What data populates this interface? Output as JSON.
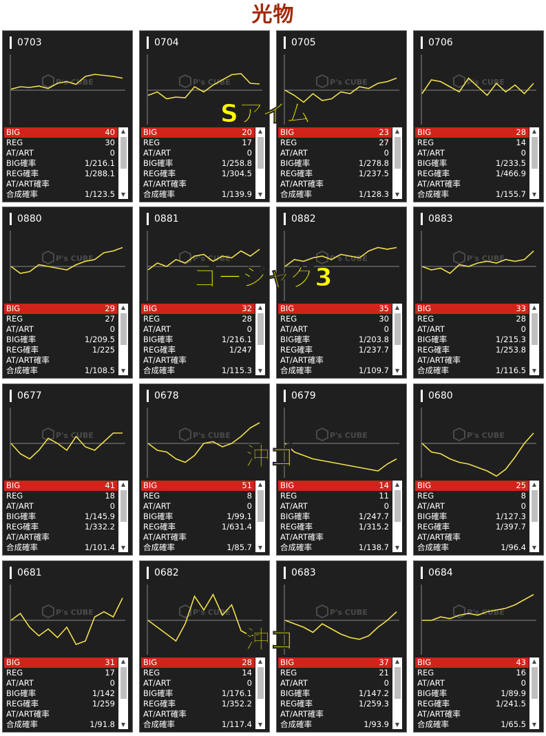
{
  "page": {
    "title": "光物"
  },
  "overlays": [
    {
      "text": "Sアイム"
    },
    {
      "text": "ゴージャグ3"
    },
    {
      "text": "沖ゴ"
    },
    {
      "text": "沖ゴ"
    }
  ],
  "labels": {
    "big": "BIG",
    "reg": "REG",
    "at": "AT/ART",
    "big_rate": "BIG確率",
    "reg_rate": "REG確率",
    "at_rate": "AT/ART確率",
    "combined_rate": "合成確率"
  },
  "colors": {
    "line": "#f2e14c",
    "big_bar": "#d0241b",
    "card_bg": "#1f1f1f",
    "title": "#a0290a",
    "overlay": "#ffff00"
  },
  "watermark": {
    "brand": "P's CUBE",
    "icon": "cube-logo-icon"
  },
  "machines": [
    {
      "id": "0703",
      "big": "40",
      "reg": "30",
      "at": "0",
      "big_rate": "1/216.1",
      "reg_rate": "1/288.1",
      "at_rate": "",
      "combined": "1/123.5",
      "graph": [
        0.03,
        0.1,
        0.08,
        0.12,
        0.05,
        0.2,
        0.25,
        0.17,
        0.4,
        0.46,
        0.43,
        0.4,
        0.35
      ]
    },
    {
      "id": "0704",
      "big": "20",
      "reg": "17",
      "at": "0",
      "big_rate": "1/258.8",
      "reg_rate": "1/304.5",
      "at_rate": "",
      "combined": "1/139.9",
      "graph": [
        -0.15,
        -0.05,
        -0.25,
        -0.2,
        -0.22,
        0.1,
        -0.05,
        0.15,
        0.3,
        0.45,
        0.48,
        0.2,
        0.18
      ]
    },
    {
      "id": "0705",
      "big": "23",
      "reg": "27",
      "at": "0",
      "big_rate": "1/278.8",
      "reg_rate": "1/237.5",
      "at_rate": "",
      "combined": "1/128.3",
      "graph": [
        0.0,
        -0.15,
        -0.35,
        -0.1,
        -0.3,
        -0.25,
        -0.05,
        -0.1,
        0.1,
        0.05,
        0.2,
        0.25,
        0.35
      ]
    },
    {
      "id": "0706",
      "big": "28",
      "reg": "14",
      "at": "0",
      "big_rate": "1/233.5",
      "reg_rate": "1/466.9",
      "at_rate": "",
      "combined": "1/155.7",
      "graph": [
        -0.1,
        0.3,
        0.25,
        0.1,
        -0.05,
        0.35,
        0.1,
        -0.15,
        0.2,
        -0.05,
        0.15,
        -0.1,
        0.2
      ]
    },
    {
      "id": "0880",
      "big": "29",
      "reg": "27",
      "at": "0",
      "big_rate": "1/209.5",
      "reg_rate": "1/225",
      "at_rate": "",
      "combined": "1/108.5",
      "graph": [
        0.0,
        -0.2,
        -0.15,
        0.05,
        0.0,
        -0.05,
        -0.1,
        0.05,
        0.15,
        0.2,
        0.4,
        0.45,
        0.55
      ]
    },
    {
      "id": "0881",
      "big": "32",
      "reg": "28",
      "at": "0",
      "big_rate": "1/216.1",
      "reg_rate": "1/247",
      "at_rate": "",
      "combined": "1/115.3",
      "graph": [
        -0.1,
        0.1,
        0.0,
        0.2,
        0.1,
        0.3,
        0.35,
        0.15,
        0.3,
        0.25,
        0.45,
        0.3,
        0.5
      ]
    },
    {
      "id": "0882",
      "big": "35",
      "reg": "30",
      "at": "0",
      "big_rate": "1/203.8",
      "reg_rate": "1/237.7",
      "at_rate": "",
      "combined": "1/109.7",
      "graph": [
        0.0,
        0.2,
        0.15,
        0.25,
        0.3,
        0.2,
        0.35,
        0.3,
        0.25,
        0.45,
        0.55,
        0.5,
        0.55
      ]
    },
    {
      "id": "0883",
      "big": "33",
      "reg": "28",
      "at": "0",
      "big_rate": "1/215.3",
      "reg_rate": "1/253.8",
      "at_rate": "",
      "combined": "1/116.5",
      "graph": [
        0.0,
        -0.1,
        -0.05,
        -0.2,
        0.05,
        0.0,
        0.1,
        0.15,
        0.1,
        0.2,
        0.15,
        0.2,
        0.45
      ]
    },
    {
      "id": "0677",
      "big": "41",
      "reg": "18",
      "at": "0",
      "big_rate": "1/145.9",
      "reg_rate": "1/332.2",
      "at_rate": "",
      "combined": "1/101.4",
      "graph": [
        0.0,
        -0.3,
        -0.45,
        -0.2,
        0.15,
        0.0,
        -0.2,
        0.2,
        -0.1,
        -0.2,
        0.05,
        0.3,
        0.3
      ]
    },
    {
      "id": "0678",
      "big": "51",
      "reg": "8",
      "at": "0",
      "big_rate": "1/99.1",
      "reg_rate": "1/631.4",
      "at_rate": "",
      "combined": "1/85.7",
      "graph": [
        0.0,
        -0.2,
        -0.25,
        -0.45,
        -0.55,
        -0.35,
        0.0,
        0.05,
        -0.1,
        0.0,
        0.2,
        0.45,
        0.6
      ]
    },
    {
      "id": "0679",
      "big": "14",
      "reg": "11",
      "at": "0",
      "big_rate": "1/247.7",
      "reg_rate": "1/315.2",
      "at_rate": "",
      "combined": "1/138.7",
      "graph": [
        0.0,
        -0.25,
        -0.35,
        -0.45,
        -0.5,
        -0.55,
        -0.6,
        -0.65,
        -0.7,
        -0.75,
        -0.8,
        -0.6,
        -0.45
      ]
    },
    {
      "id": "0680",
      "big": "25",
      "reg": "8",
      "at": "0",
      "big_rate": "1/127.3",
      "reg_rate": "1/397.7",
      "at_rate": "",
      "combined": "1/96.4",
      "graph": [
        0.0,
        -0.25,
        -0.3,
        -0.45,
        -0.55,
        -0.6,
        -0.7,
        -0.8,
        -0.95,
        -0.75,
        -0.4,
        0.0,
        0.3
      ]
    },
    {
      "id": "0681",
      "big": "31",
      "reg": "17",
      "at": "0",
      "big_rate": "1/142",
      "reg_rate": "1/259",
      "at_rate": "",
      "combined": "1/91.8",
      "graph": [
        0.0,
        0.2,
        -0.2,
        -0.45,
        -0.25,
        -0.5,
        -0.2,
        -0.7,
        -0.6,
        0.1,
        0.25,
        0.1,
        0.65
      ]
    },
    {
      "id": "0682",
      "big": "28",
      "reg": "14",
      "at": "0",
      "big_rate": "1/176.1",
      "reg_rate": "1/352.2",
      "at_rate": "",
      "combined": "1/117.4",
      "graph": [
        0.0,
        -0.2,
        -0.4,
        -0.6,
        -0.1,
        0.7,
        0.3,
        0.75,
        0.15,
        0.45,
        -0.3,
        -0.45,
        -0.4
      ]
    },
    {
      "id": "0683",
      "big": "37",
      "reg": "21",
      "at": "0",
      "big_rate": "1/147.2",
      "reg_rate": "1/259.3",
      "at_rate": "",
      "combined": "1/93.9",
      "graph": [
        0.0,
        -0.1,
        -0.2,
        -0.35,
        -0.1,
        -0.25,
        -0.4,
        -0.5,
        -0.55,
        -0.45,
        -0.2,
        0.0,
        0.25
      ]
    },
    {
      "id": "0684",
      "big": "43",
      "reg": "16",
      "at": "0",
      "big_rate": "1/89.9",
      "reg_rate": "1/241.5",
      "at_rate": "",
      "combined": "1/65.5",
      "graph": [
        0.0,
        0.0,
        0.1,
        0.05,
        0.15,
        0.2,
        0.15,
        0.25,
        0.3,
        0.35,
        0.45,
        0.6,
        0.75
      ]
    }
  ]
}
